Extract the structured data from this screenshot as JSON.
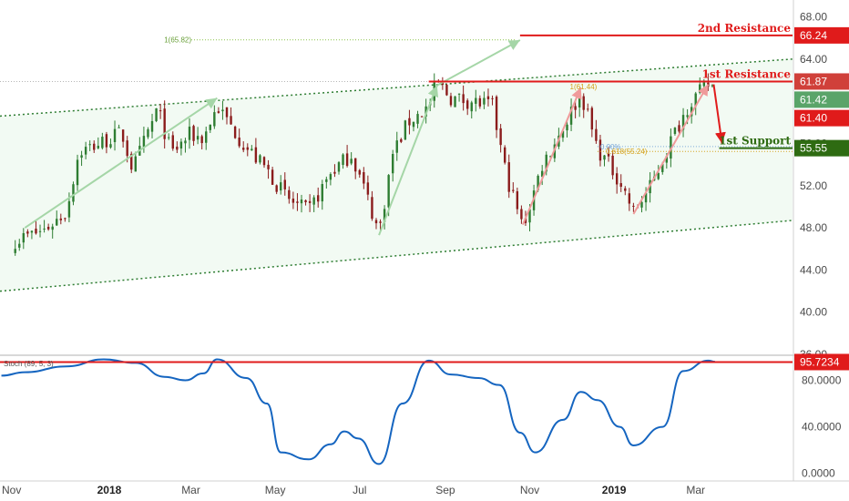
{
  "colors": {
    "bull": "#26a69a",
    "bear": "#8b1c1c",
    "bull_candle": "#2e7d32",
    "channel": "#2e7d32",
    "resistance": "#e01b1b",
    "support": "#2e6b12",
    "stoch": "#1565c0",
    "arrow_green": "#a5d6a7",
    "arrow_pink": "#ef9a9a",
    "fib": "#d4a017",
    "price_badge_green": "#5aa469"
  },
  "chart_data": [
    {
      "type": "candlestick",
      "symbol_context": "price",
      "x_labels": [
        "Nov",
        "2018",
        "Mar",
        "May",
        "Jul",
        "Sep",
        "Nov",
        "2019",
        "Mar"
      ],
      "y_ticks": [
        "68.00",
        "64.00",
        "60.00",
        "56.00",
        "52.00",
        "48.00",
        "44.00",
        "40.00",
        "36.00"
      ],
      "ylim": [
        36,
        68
      ],
      "price_path": [
        [
          "2017-10-25",
          46.8
        ],
        [
          "2017-11-15",
          47.8
        ],
        [
          "2017-12-01",
          49.5
        ],
        [
          "2017-12-10",
          55.2
        ],
        [
          "2017-12-25",
          56.0
        ],
        [
          "2018-01-10",
          57.0
        ],
        [
          "2018-01-18",
          53.5
        ],
        [
          "2018-02-05",
          59.3
        ],
        [
          "2018-02-15",
          55.0
        ],
        [
          "2018-02-28",
          56.8
        ],
        [
          "2018-03-10",
          56.5
        ],
        [
          "2018-03-20",
          59.5
        ],
        [
          "2018-04-10",
          55.6
        ],
        [
          "2018-04-25",
          53.5
        ],
        [
          "2018-05-10",
          50.7
        ],
        [
          "2018-05-25",
          49.5
        ],
        [
          "2018-06-10",
          53.2
        ],
        [
          "2018-06-25",
          55.0
        ],
        [
          "2018-07-05",
          51.5
        ],
        [
          "2018-07-15",
          47.5
        ],
        [
          "2018-07-25",
          55.0
        ],
        [
          "2018-08-05",
          58.0
        ],
        [
          "2018-08-20",
          59.5
        ],
        [
          "2018-08-26",
          61.8
        ],
        [
          "2018-09-05",
          60.3
        ],
        [
          "2018-09-20",
          60.0
        ],
        [
          "2018-10-05",
          59.5
        ],
        [
          "2018-10-15",
          53.0
        ],
        [
          "2018-10-27",
          48.0
        ],
        [
          "2018-11-10",
          54.0
        ],
        [
          "2018-11-25",
          57.5
        ],
        [
          "2018-12-08",
          60.8
        ],
        [
          "2018-12-20",
          55.5
        ],
        [
          "2019-01-05",
          52.5
        ],
        [
          "2019-01-15",
          49.5
        ],
        [
          "2019-01-28",
          52.0
        ],
        [
          "2019-02-10",
          56.0
        ],
        [
          "2019-02-25",
          60.0
        ],
        [
          "2019-03-10",
          61.5
        ],
        [
          "2019-03-15",
          61.4
        ]
      ],
      "levels": [
        {
          "label": "2nd Resistance",
          "value": "66.24"
        },
        {
          "label": "1st Resistance",
          "value": "61.87"
        },
        {
          "label": "1st Support",
          "value": "55.55"
        }
      ],
      "price_badges": [
        "61.42",
        "61.40"
      ],
      "fib_labels": [
        "1(65.82)",
        "1(61.44)",
        "0.00%",
        "0.618(55.24)"
      ],
      "channel": {
        "upper": [
          [
            "2017-10-15",
            58.6
          ],
          [
            "2019-05-10",
            64.0
          ]
        ],
        "lower": [
          [
            "2017-10-15",
            42.0
          ],
          [
            "2019-05-10",
            48.7
          ]
        ]
      }
    },
    {
      "type": "line",
      "indicator_label": "Stoch (89, 5, 3)",
      "y_ticks": [
        "80.0000",
        "40.0000",
        "0.0000"
      ],
      "ylim": [
        -5,
        100
      ],
      "level_value": "95.7234",
      "series": [
        {
          "values": [
            [
              "2017-10-15",
              84
            ],
            [
              "2017-11-01",
              87
            ],
            [
              "2017-12-01",
              92
            ],
            [
              "2017-12-28",
              98
            ],
            [
              "2018-01-20",
              95
            ],
            [
              "2018-02-10",
              83
            ],
            [
              "2018-02-25",
              80
            ],
            [
              "2018-03-10",
              86
            ],
            [
              "2018-03-20",
              98
            ],
            [
              "2018-04-10",
              82
            ],
            [
              "2018-04-25",
              60
            ],
            [
              "2018-05-05",
              18
            ],
            [
              "2018-05-25",
              12
            ],
            [
              "2018-06-10",
              25
            ],
            [
              "2018-06-20",
              36
            ],
            [
              "2018-06-30",
              30
            ],
            [
              "2018-07-15",
              8
            ],
            [
              "2018-08-01",
              60
            ],
            [
              "2018-08-20",
              97
            ],
            [
              "2018-09-05",
              85
            ],
            [
              "2018-09-25",
              82
            ],
            [
              "2018-10-10",
              76
            ],
            [
              "2018-10-25",
              35
            ],
            [
              "2018-11-05",
              18
            ],
            [
              "2018-11-25",
              46
            ],
            [
              "2018-12-08",
              70
            ],
            [
              "2018-12-20",
              63
            ],
            [
              "2019-01-05",
              40
            ],
            [
              "2019-01-15",
              24
            ],
            [
              "2019-02-05",
              40
            ],
            [
              "2019-02-20",
              88
            ],
            [
              "2019-03-10",
              97
            ],
            [
              "2019-03-15",
              96
            ]
          ]
        }
      ]
    }
  ]
}
